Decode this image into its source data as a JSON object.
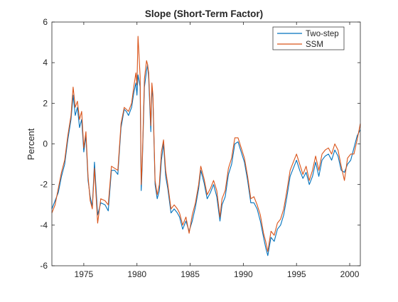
{
  "chart_data": {
    "type": "line",
    "title": "Slope (Short-Term Factor)",
    "xlabel": "",
    "ylabel": "Percent",
    "xlim": [
      1972.0,
      2001.0
    ],
    "ylim": [
      -6,
      6
    ],
    "xticks": [
      1975,
      1980,
      1985,
      1990,
      1995,
      2000
    ],
    "yticks": [
      -6,
      -4,
      -2,
      0,
      2,
      4,
      6
    ],
    "grid": false,
    "legend_position": "top-right",
    "series": [
      {
        "name": "Two-step",
        "color": "#0072BD",
        "x": [
          1972.0,
          1972.3,
          1972.6,
          1972.9,
          1973.2,
          1973.5,
          1973.8,
          1974.0,
          1974.2,
          1974.4,
          1974.6,
          1974.8,
          1975.0,
          1975.2,
          1975.4,
          1975.6,
          1975.8,
          1976.0,
          1976.3,
          1976.6,
          1977.0,
          1977.3,
          1977.6,
          1977.9,
          1978.2,
          1978.5,
          1978.8,
          1979.0,
          1979.2,
          1979.5,
          1979.7,
          1979.9,
          1980.0,
          1980.1,
          1980.3,
          1980.4,
          1980.5,
          1980.7,
          1980.9,
          1981.0,
          1981.1,
          1981.3,
          1981.4,
          1981.5,
          1981.7,
          1981.9,
          1982.1,
          1982.3,
          1982.5,
          1982.7,
          1982.9,
          1983.2,
          1983.5,
          1983.8,
          1984.0,
          1984.3,
          1984.6,
          1984.9,
          1985.2,
          1985.5,
          1985.8,
          1986.0,
          1986.3,
          1986.6,
          1986.9,
          1987.2,
          1987.5,
          1987.8,
          1988.0,
          1988.3,
          1988.6,
          1988.9,
          1989.2,
          1989.5,
          1989.8,
          1990.1,
          1990.4,
          1990.7,
          1991.0,
          1991.3,
          1991.6,
          1991.9,
          1992.1,
          1992.3,
          1992.6,
          1992.9,
          1993.2,
          1993.5,
          1993.8,
          1994.1,
          1994.4,
          1994.7,
          1995.0,
          1995.3,
          1995.6,
          1995.9,
          1996.2,
          1996.5,
          1996.8,
          1997.1,
          1997.4,
          1997.7,
          1998.0,
          1998.3,
          1998.6,
          1998.9,
          1999.2,
          1999.5,
          1999.8,
          2000.1,
          2000.4,
          2000.7,
          2001.0
        ],
        "values": [
          -3.2,
          -2.8,
          -2.4,
          -1.6,
          -1.0,
          0.2,
          1.2,
          2.4,
          1.4,
          1.8,
          0.8,
          1.2,
          -0.4,
          0.4,
          -1.8,
          -2.6,
          -3.1,
          -0.9,
          -3.5,
          -2.9,
          -3.0,
          -3.3,
          -1.3,
          -1.3,
          -1.5,
          0.8,
          1.7,
          1.6,
          1.4,
          1.8,
          2.5,
          3.0,
          2.4,
          3.4,
          2.8,
          -2.3,
          -1.0,
          2.8,
          3.6,
          3.9,
          3.2,
          0.6,
          2.8,
          2.2,
          -2.0,
          -2.7,
          -2.3,
          -0.8,
          0.0,
          -1.6,
          -2.2,
          -3.4,
          -3.2,
          -3.4,
          -3.6,
          -4.2,
          -3.8,
          -4.3,
          -3.8,
          -3.1,
          -2.2,
          -1.3,
          -1.9,
          -2.7,
          -2.4,
          -2.0,
          -2.6,
          -3.8,
          -3.0,
          -2.6,
          -1.5,
          -1.0,
          0.0,
          0.1,
          -0.4,
          -0.9,
          -1.8,
          -2.9,
          -2.9,
          -3.2,
          -3.8,
          -4.6,
          -5.1,
          -5.5,
          -4.6,
          -4.8,
          -4.2,
          -4.0,
          -3.5,
          -2.6,
          -1.6,
          -1.2,
          -0.8,
          -1.3,
          -1.7,
          -1.4,
          -2.0,
          -1.6,
          -0.9,
          -1.6,
          -0.8,
          -0.6,
          -0.5,
          -0.8,
          -0.3,
          -0.6,
          -1.3,
          -1.4,
          -1.0,
          -0.8,
          -0.2,
          0.4,
          0.7
        ]
      },
      {
        "name": "SSM",
        "color": "#D95319",
        "x": [
          1972.0,
          1972.3,
          1972.6,
          1972.9,
          1973.2,
          1973.5,
          1973.8,
          1974.0,
          1974.2,
          1974.4,
          1974.6,
          1974.8,
          1975.0,
          1975.2,
          1975.4,
          1975.6,
          1975.8,
          1976.0,
          1976.3,
          1976.6,
          1977.0,
          1977.3,
          1977.6,
          1977.9,
          1978.2,
          1978.5,
          1978.8,
          1979.0,
          1979.2,
          1979.5,
          1979.7,
          1979.9,
          1980.0,
          1980.1,
          1980.3,
          1980.4,
          1980.5,
          1980.7,
          1980.9,
          1981.0,
          1981.1,
          1981.3,
          1981.4,
          1981.5,
          1981.7,
          1981.9,
          1982.1,
          1982.3,
          1982.5,
          1982.7,
          1982.9,
          1983.2,
          1983.5,
          1983.8,
          1984.0,
          1984.3,
          1984.6,
          1984.9,
          1985.2,
          1985.5,
          1985.8,
          1986.0,
          1986.3,
          1986.6,
          1986.9,
          1987.2,
          1987.5,
          1987.8,
          1988.0,
          1988.3,
          1988.6,
          1988.9,
          1989.2,
          1989.5,
          1989.8,
          1990.1,
          1990.4,
          1990.7,
          1991.0,
          1991.3,
          1991.6,
          1991.9,
          1992.1,
          1992.3,
          1992.6,
          1992.9,
          1993.2,
          1993.5,
          1993.8,
          1994.1,
          1994.4,
          1994.7,
          1995.0,
          1995.3,
          1995.6,
          1995.9,
          1996.2,
          1996.5,
          1996.8,
          1997.1,
          1997.4,
          1997.7,
          1998.0,
          1998.3,
          1998.6,
          1998.9,
          1999.2,
          1999.5,
          1999.8,
          2000.1,
          2000.4,
          2000.7,
          2001.0
        ],
        "values": [
          -3.4,
          -3.0,
          -2.2,
          -1.4,
          -0.8,
          0.4,
          1.4,
          2.8,
          1.8,
          2.1,
          1.2,
          1.6,
          -0.2,
          0.6,
          -1.6,
          -2.8,
          -3.2,
          -1.2,
          -3.9,
          -2.7,
          -2.8,
          -3.0,
          -1.1,
          -1.2,
          -1.3,
          1.0,
          1.8,
          1.7,
          1.6,
          2.0,
          2.8,
          3.5,
          2.9,
          5.3,
          3.3,
          -2.0,
          -0.8,
          3.2,
          4.1,
          3.9,
          3.5,
          0.9,
          3.0,
          2.4,
          -1.8,
          -2.5,
          -2.0,
          -0.4,
          0.2,
          -1.3,
          -2.0,
          -3.2,
          -3.0,
          -3.2,
          -3.4,
          -4.0,
          -3.6,
          -4.4,
          -3.5,
          -2.9,
          -2.0,
          -1.1,
          -1.7,
          -2.5,
          -2.2,
          -1.8,
          -2.3,
          -3.6,
          -2.7,
          -2.3,
          -1.2,
          -0.7,
          0.3,
          0.3,
          -0.2,
          -0.7,
          -1.6,
          -2.7,
          -2.6,
          -3.0,
          -3.5,
          -4.4,
          -4.8,
          -5.3,
          -4.3,
          -4.5,
          -3.9,
          -3.7,
          -3.2,
          -2.3,
          -1.3,
          -0.9,
          -0.5,
          -1.0,
          -1.5,
          -1.1,
          -1.8,
          -1.3,
          -0.6,
          -1.3,
          -0.5,
          -0.3,
          -0.2,
          -0.5,
          0.0,
          -0.3,
          -1.1,
          -1.8,
          -0.7,
          -0.5,
          -0.5,
          0.2,
          1.0
        ]
      }
    ]
  }
}
